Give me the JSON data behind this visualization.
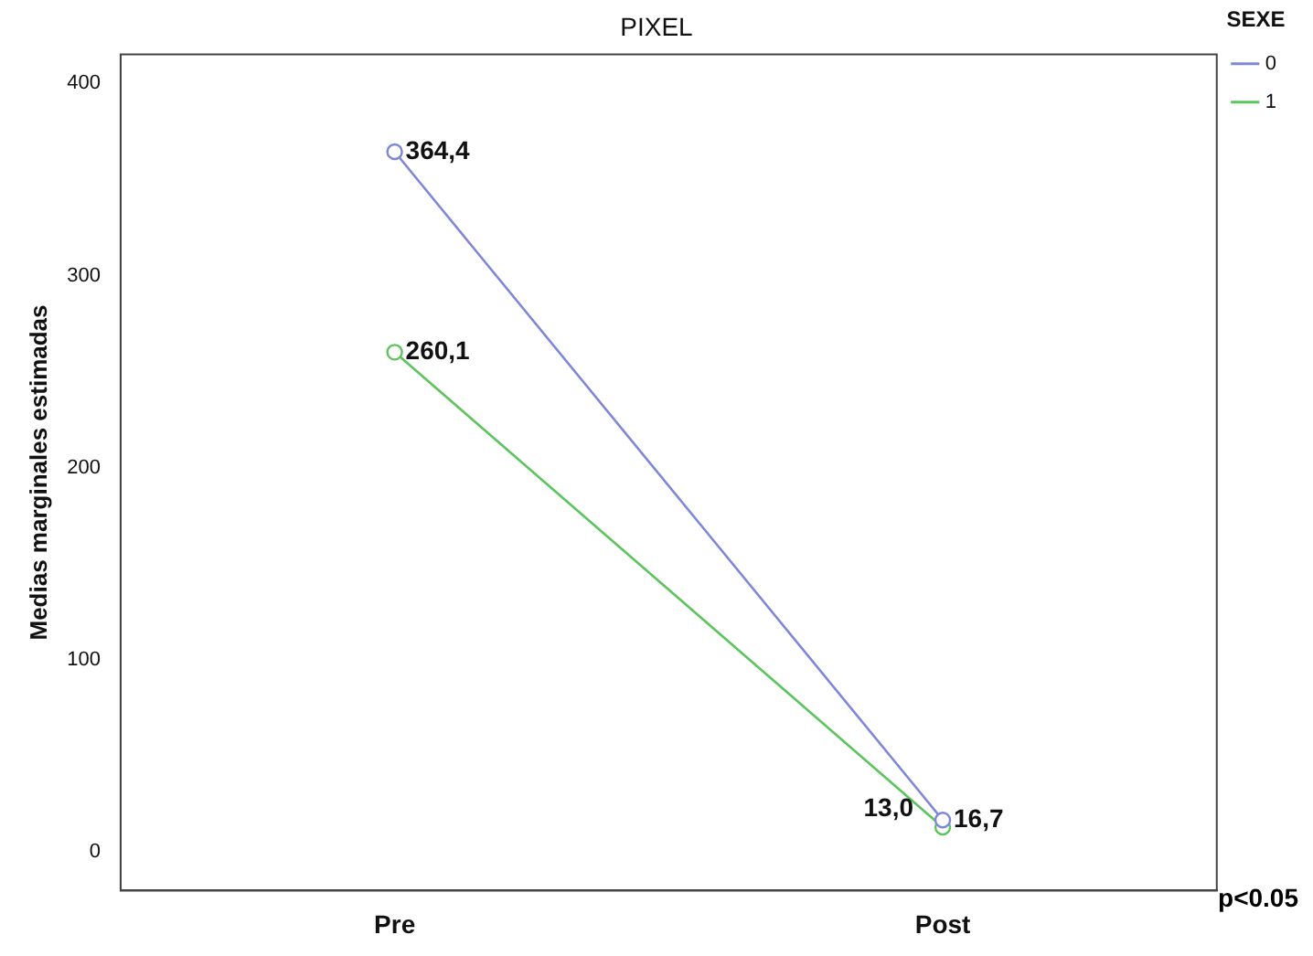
{
  "chart_data": {
    "type": "line",
    "title": "PIXEL",
    "ylabel": "Medias marginales estimadas",
    "legend_title": "SEXE",
    "categories": [
      "Pre",
      "Post"
    ],
    "series": [
      {
        "name": "0",
        "color": "#7f86d8",
        "values": [
          364.4,
          16.7
        ],
        "value_labels": [
          "364,4",
          "16,7"
        ]
      },
      {
        "name": "1",
        "color": "#5cc45c",
        "values": [
          260.1,
          13.0
        ],
        "value_labels": [
          "260,1",
          "13,0"
        ]
      }
    ],
    "ylim": [
      -20,
      415
    ],
    "yticks": [
      0,
      100,
      200,
      300,
      400
    ],
    "grid": false,
    "legend": "top right",
    "marker": "circle",
    "line_style": "solid",
    "annotations": [
      "p<0.05"
    ]
  }
}
